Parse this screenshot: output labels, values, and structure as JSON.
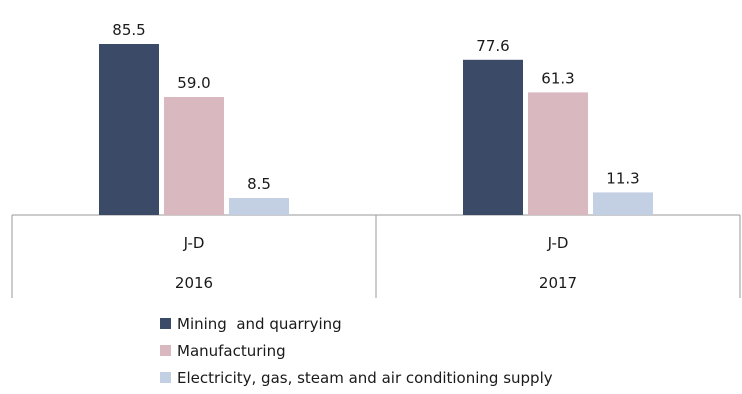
{
  "chart_data": {
    "type": "bar",
    "groups": [
      {
        "label": "J-D",
        "year": "2016",
        "values": [
          85.5,
          59.0,
          8.5
        ],
        "value_labels": [
          "85.5",
          "59.0",
          "8.5"
        ]
      },
      {
        "label": "J-D",
        "year": "2017",
        "values": [
          77.6,
          61.3,
          11.3
        ],
        "value_labels": [
          "77.6",
          "61.3",
          "11.3"
        ]
      }
    ],
    "series": [
      {
        "name": "Mining  and quarrying",
        "color": "#3b4a66"
      },
      {
        "name": "Manufacturing",
        "color": "#d9b8bf"
      },
      {
        "name": "Electricity, gas, steam and air conditioning supply",
        "color": "#c3d0e3"
      }
    ],
    "ylim": [
      0,
      100
    ],
    "grid": false,
    "legend_position": "bottom"
  }
}
